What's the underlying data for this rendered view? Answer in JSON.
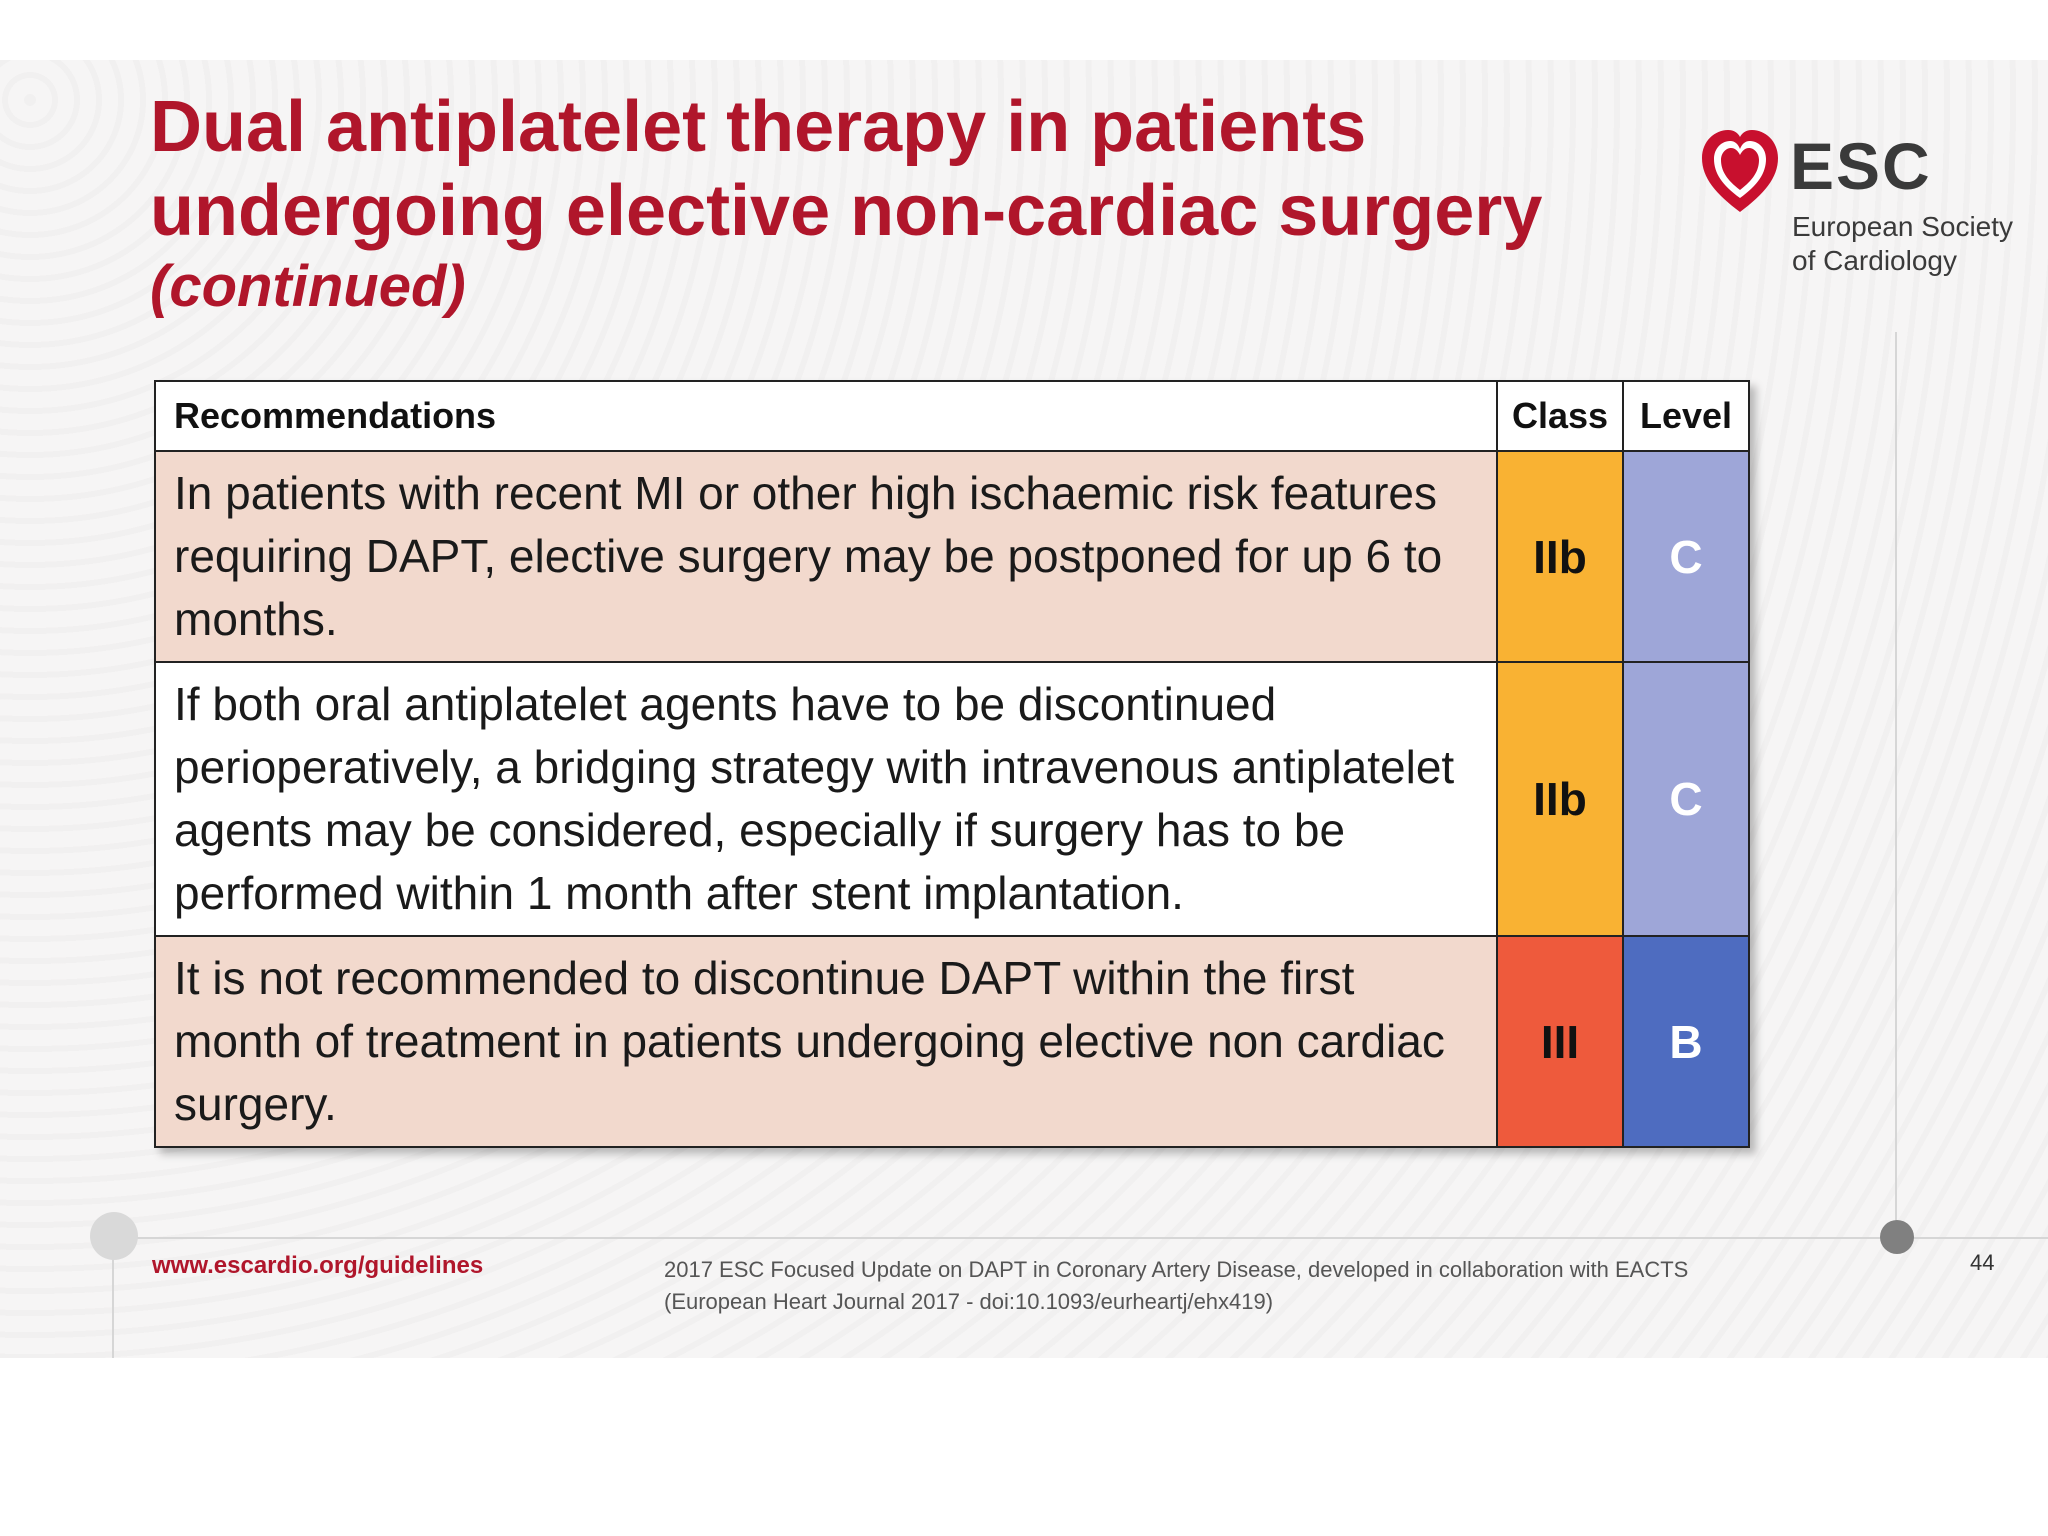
{
  "title": {
    "line1": "Dual antiplatelet therapy in patients",
    "line2": "undergoing elective non-cardiac surgery",
    "subtitle": "(continued)"
  },
  "logo": {
    "name": "ESC",
    "subtitle_line1": "European Society",
    "subtitle_line2": "of Cardiology",
    "icon": "heart-logo-icon",
    "color": "#c8102e"
  },
  "table": {
    "headers": {
      "recommendations": "Recommendations",
      "class": "Class",
      "level": "Level"
    },
    "rows": [
      {
        "text": "In patients with recent MI or other high ischaemic risk features requiring DAPT, elective surgery may be postponed for up 6 to months.",
        "class": "IIb",
        "level": "C",
        "class_color": "#f9b233",
        "level_color": "#9ea6d8",
        "row_color": "#f2d9cd"
      },
      {
        "text": "If both oral antiplatelet agents have to be discontinued perioperatively, a bridging strategy with intravenous antiplatelet agents may be considered, especially if surgery has to be performed within 1 month after stent implantation.",
        "class": "IIb",
        "level": "C",
        "class_color": "#f9b233",
        "level_color": "#9ea6d8",
        "row_color": "#ffffff"
      },
      {
        "text": "It is not recommended to discontinue DAPT within the first month of treatment in patients undergoing elective non cardiac surgery.",
        "class": "III",
        "level": "B",
        "class_color": "#ee5a3c",
        "level_color": "#4e6cc0",
        "row_color": "#f2d9cd"
      }
    ]
  },
  "footer": {
    "url": "www.escardio.org/guidelines",
    "citation_line1": "2017 ESC Focused Update on DAPT in Coronary Artery Disease, developed in collaboration with EACTS",
    "citation_line2": "(European Heart Journal 2017 - doi:10.1093/eurheartj/ehx419)",
    "page_number": "44"
  }
}
